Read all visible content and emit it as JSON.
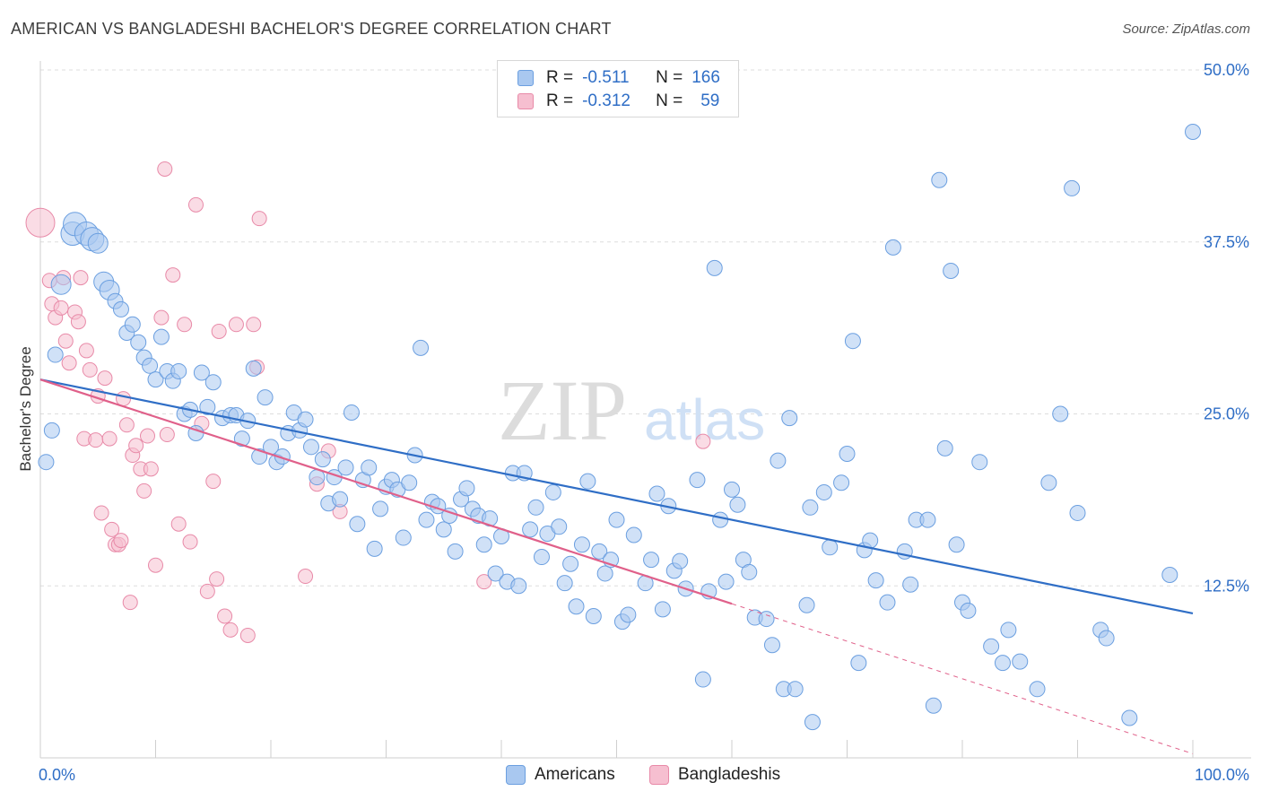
{
  "header": {
    "title": "AMERICAN VS BANGLADESHI BACHELOR'S DEGREE CORRELATION CHART",
    "source": "Source: ZipAtlas.com"
  },
  "watermark": {
    "zip": "ZIP",
    "atlas": "atlas"
  },
  "legend": {
    "rows": [
      {
        "r_label": "R =",
        "r_value": "-0.511",
        "n_label": "N =",
        "n_value": "166",
        "color": "#a9c8f0",
        "border": "#6b9fe0"
      },
      {
        "r_label": "R =",
        "r_value": "-0.312",
        "n_label": "N =",
        "n_value": "59",
        "color": "#f6bfd0",
        "border": "#e88aa8"
      }
    ]
  },
  "bottom_legend": {
    "americans": "Americans",
    "bangladeshis": "Bangladeshis"
  },
  "colors": {
    "americans_fill": "#a9c8f0",
    "americans_stroke": "#6b9fe0",
    "americans_line": "#2f6ec6",
    "bangladeshis_fill": "#f6bfd0",
    "bangladeshis_stroke": "#e88aa8",
    "bangladeshis_line": "#e0608a",
    "grid": "#dedede",
    "tick_label": "#2f6ec6"
  },
  "chart_data": {
    "type": "scatter",
    "title": "AMERICAN VS BANGLADESHI BACHELOR'S DEGREE CORRELATION CHART",
    "xlabel": "",
    "ylabel": "Bachelor's Degree",
    "xlim": [
      0,
      100
    ],
    "ylim": [
      0,
      50
    ],
    "x_tick_labels": [
      "0.0%",
      "100.0%"
    ],
    "y_ticks": [
      12.5,
      25.0,
      37.5,
      50.0
    ],
    "y_tick_labels": [
      "12.5%",
      "25.0%",
      "37.5%",
      "50.0%"
    ],
    "grid": true,
    "legend_placement": "top-center",
    "series": [
      {
        "name": "Americans",
        "trend": {
          "x": [
            0,
            100
          ],
          "y": [
            27.5,
            10.5
          ]
        },
        "points": [
          [
            0.5,
            21.5
          ],
          [
            1.0,
            23.8
          ],
          [
            1.3,
            29.3
          ],
          [
            1.8,
            34.4
          ],
          [
            2.8,
            38.1
          ],
          [
            3.0,
            38.8
          ],
          [
            4.0,
            38.1
          ],
          [
            4.5,
            37.7
          ],
          [
            5.0,
            37.4
          ],
          [
            5.5,
            34.6
          ],
          [
            6.0,
            34.0
          ],
          [
            6.5,
            33.2
          ],
          [
            7.0,
            32.6
          ],
          [
            7.5,
            30.9
          ],
          [
            8.0,
            31.5
          ],
          [
            8.5,
            30.2
          ],
          [
            9.0,
            29.1
          ],
          [
            9.5,
            28.5
          ],
          [
            10.0,
            27.5
          ],
          [
            10.5,
            30.6
          ],
          [
            11.0,
            28.1
          ],
          [
            11.5,
            27.4
          ],
          [
            12.0,
            28.1
          ],
          [
            12.5,
            25.0
          ],
          [
            13.0,
            25.3
          ],
          [
            13.5,
            23.6
          ],
          [
            14.0,
            28.0
          ],
          [
            14.5,
            25.5
          ],
          [
            15.0,
            27.3
          ],
          [
            15.8,
            24.7
          ],
          [
            16.5,
            24.9
          ],
          [
            17.0,
            24.9
          ],
          [
            17.5,
            23.2
          ],
          [
            18.0,
            24.5
          ],
          [
            18.5,
            28.3
          ],
          [
            19.0,
            21.9
          ],
          [
            19.5,
            26.2
          ],
          [
            20.0,
            22.6
          ],
          [
            20.5,
            21.5
          ],
          [
            21.0,
            21.9
          ],
          [
            21.5,
            23.6
          ],
          [
            22.0,
            25.1
          ],
          [
            22.5,
            23.8
          ],
          [
            23.0,
            24.6
          ],
          [
            23.5,
            22.6
          ],
          [
            24.0,
            20.4
          ],
          [
            24.5,
            21.7
          ],
          [
            25.0,
            18.5
          ],
          [
            25.5,
            20.4
          ],
          [
            26.0,
            18.8
          ],
          [
            26.5,
            21.1
          ],
          [
            27.0,
            25.1
          ],
          [
            27.5,
            17.0
          ],
          [
            28.0,
            20.2
          ],
          [
            28.5,
            21.1
          ],
          [
            29.0,
            15.2
          ],
          [
            29.5,
            18.1
          ],
          [
            30.0,
            19.7
          ],
          [
            30.5,
            20.2
          ],
          [
            31.0,
            19.5
          ],
          [
            31.5,
            16.0
          ],
          [
            32.0,
            20.0
          ],
          [
            32.5,
            22.0
          ],
          [
            33.0,
            29.8
          ],
          [
            33.5,
            17.3
          ],
          [
            34.0,
            18.6
          ],
          [
            34.5,
            18.3
          ],
          [
            35.0,
            16.6
          ],
          [
            35.5,
            17.6
          ],
          [
            36.0,
            15.0
          ],
          [
            36.5,
            18.8
          ],
          [
            37.0,
            19.6
          ],
          [
            37.5,
            18.1
          ],
          [
            38.0,
            17.6
          ],
          [
            38.5,
            15.5
          ],
          [
            39.0,
            17.4
          ],
          [
            39.5,
            13.4
          ],
          [
            40.0,
            16.1
          ],
          [
            40.5,
            12.8
          ],
          [
            41.0,
            20.7
          ],
          [
            41.5,
            12.5
          ],
          [
            42.0,
            20.7
          ],
          [
            42.5,
            16.6
          ],
          [
            43.0,
            18.2
          ],
          [
            43.5,
            14.6
          ],
          [
            44.0,
            16.3
          ],
          [
            44.5,
            19.3
          ],
          [
            45.0,
            16.8
          ],
          [
            45.5,
            12.7
          ],
          [
            46.0,
            14.1
          ],
          [
            46.5,
            11.0
          ],
          [
            47.0,
            15.5
          ],
          [
            47.5,
            20.1
          ],
          [
            48.0,
            10.3
          ],
          [
            48.5,
            15.0
          ],
          [
            49.0,
            13.4
          ],
          [
            49.5,
            14.4
          ],
          [
            50.0,
            17.3
          ],
          [
            50.5,
            9.9
          ],
          [
            51.0,
            10.4
          ],
          [
            51.5,
            16.2
          ],
          [
            52.5,
            12.7
          ],
          [
            53.0,
            14.4
          ],
          [
            53.5,
            19.2
          ],
          [
            54.0,
            10.8
          ],
          [
            54.5,
            18.3
          ],
          [
            55.0,
            13.6
          ],
          [
            55.5,
            14.3
          ],
          [
            56.0,
            12.3
          ],
          [
            57.0,
            20.2
          ],
          [
            57.5,
            5.7
          ],
          [
            58.0,
            12.1
          ],
          [
            58.5,
            35.6
          ],
          [
            59.0,
            17.3
          ],
          [
            59.5,
            12.8
          ],
          [
            60.0,
            19.5
          ],
          [
            60.5,
            18.4
          ],
          [
            61.0,
            14.4
          ],
          [
            61.5,
            13.5
          ],
          [
            62.0,
            10.2
          ],
          [
            63.0,
            10.1
          ],
          [
            63.5,
            8.2
          ],
          [
            64.0,
            21.6
          ],
          [
            64.5,
            5.0
          ],
          [
            65.0,
            24.7
          ],
          [
            65.5,
            5.0
          ],
          [
            66.5,
            11.1
          ],
          [
            66.8,
            18.2
          ],
          [
            67.0,
            2.6
          ],
          [
            68.0,
            19.3
          ],
          [
            68.5,
            15.3
          ],
          [
            69.5,
            20.0
          ],
          [
            70.0,
            22.1
          ],
          [
            70.5,
            30.3
          ],
          [
            71.0,
            6.9
          ],
          [
            71.5,
            15.1
          ],
          [
            72.0,
            15.8
          ],
          [
            72.5,
            12.9
          ],
          [
            73.5,
            11.3
          ],
          [
            74.0,
            37.1
          ],
          [
            75.0,
            15.0
          ],
          [
            75.5,
            12.6
          ],
          [
            76.0,
            17.3
          ],
          [
            77.0,
            17.3
          ],
          [
            77.5,
            3.8
          ],
          [
            78.0,
            42.0
          ],
          [
            78.5,
            22.5
          ],
          [
            79.0,
            35.4
          ],
          [
            79.5,
            15.5
          ],
          [
            80.0,
            11.3
          ],
          [
            80.5,
            10.7
          ],
          [
            81.5,
            21.5
          ],
          [
            82.5,
            8.1
          ],
          [
            83.5,
            6.9
          ],
          [
            84.0,
            9.3
          ],
          [
            85.0,
            7.0
          ],
          [
            86.5,
            5.0
          ],
          [
            87.5,
            20.0
          ],
          [
            88.5,
            25.0
          ],
          [
            89.5,
            41.4
          ],
          [
            90.0,
            17.8
          ],
          [
            92.0,
            9.3
          ],
          [
            92.5,
            8.7
          ],
          [
            94.5,
            2.9
          ],
          [
            100.0,
            45.5
          ],
          [
            98.0,
            13.3
          ]
        ]
      },
      {
        "name": "Bangladeshis",
        "trend": {
          "x": [
            0,
            60
          ],
          "y": [
            27.5,
            11.2
          ]
        },
        "trend_extension": {
          "x": [
            60,
            100
          ],
          "y": [
            11.2,
            0.3
          ]
        },
        "points": [
          [
            0.0,
            38.9
          ],
          [
            0.8,
            34.7
          ],
          [
            1.0,
            33.0
          ],
          [
            1.3,
            32.0
          ],
          [
            1.8,
            32.7
          ],
          [
            2.0,
            34.9
          ],
          [
            2.2,
            30.3
          ],
          [
            2.5,
            28.7
          ],
          [
            3.0,
            32.4
          ],
          [
            3.3,
            31.7
          ],
          [
            3.5,
            34.9
          ],
          [
            3.8,
            23.2
          ],
          [
            4.0,
            29.6
          ],
          [
            4.3,
            28.2
          ],
          [
            4.8,
            23.1
          ],
          [
            5.0,
            26.3
          ],
          [
            5.3,
            17.8
          ],
          [
            5.6,
            27.6
          ],
          [
            6.0,
            23.2
          ],
          [
            6.2,
            16.6
          ],
          [
            6.5,
            15.5
          ],
          [
            6.8,
            15.5
          ],
          [
            7.0,
            15.8
          ],
          [
            7.2,
            26.1
          ],
          [
            7.5,
            24.2
          ],
          [
            7.8,
            11.3
          ],
          [
            8.0,
            22.0
          ],
          [
            8.3,
            22.7
          ],
          [
            8.7,
            21.0
          ],
          [
            9.0,
            19.4
          ],
          [
            9.3,
            23.4
          ],
          [
            9.6,
            21.0
          ],
          [
            10.0,
            14.0
          ],
          [
            10.5,
            32.0
          ],
          [
            10.8,
            42.8
          ],
          [
            11.0,
            23.5
          ],
          [
            11.5,
            35.1
          ],
          [
            12.0,
            17.0
          ],
          [
            12.5,
            31.5
          ],
          [
            13.0,
            15.7
          ],
          [
            13.5,
            40.2
          ],
          [
            14.0,
            24.3
          ],
          [
            14.5,
            12.1
          ],
          [
            15.0,
            20.1
          ],
          [
            15.3,
            13.0
          ],
          [
            15.5,
            31.0
          ],
          [
            16.0,
            10.3
          ],
          [
            16.5,
            9.3
          ],
          [
            17.0,
            31.5
          ],
          [
            18.0,
            8.9
          ],
          [
            18.5,
            31.5
          ],
          [
            18.8,
            28.4
          ],
          [
            19.0,
            39.2
          ],
          [
            23.0,
            13.2
          ],
          [
            24.0,
            19.9
          ],
          [
            25.0,
            22.3
          ],
          [
            26.0,
            17.9
          ],
          [
            38.5,
            12.8
          ],
          [
            57.5,
            23.0
          ]
        ]
      }
    ]
  }
}
